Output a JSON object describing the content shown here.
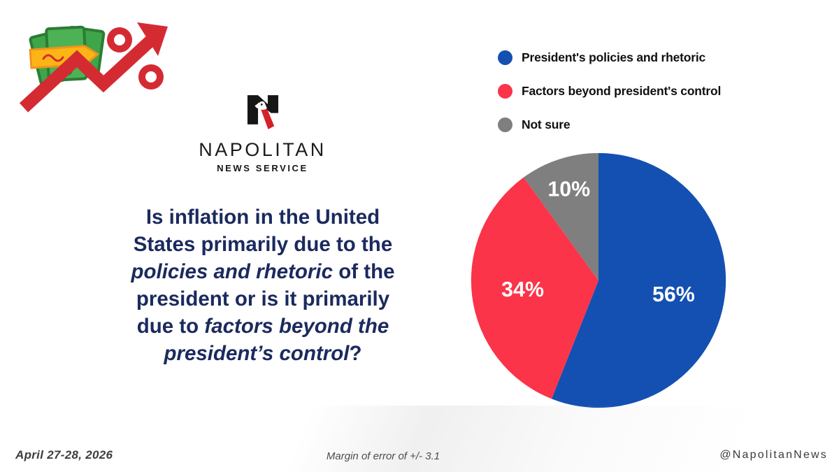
{
  "icons": {
    "money_trend": "money-trend-up-percent-icon",
    "logo_mark": "napolitan-n-eagle-logo-icon",
    "legend_dot": "legend-color-dot-icon"
  },
  "logo": {
    "name": "NAPOLITAN",
    "tagline": "NEWS SERVICE"
  },
  "question": {
    "color": "#1b2a5e",
    "plain_text": "Is inflation in the United States primarily due to the policies and rhetoric of the president or is it primarily due to factors beyond the president’s control?",
    "lines": [
      [
        {
          "text": "Is inflation in the United",
          "italic": false
        }
      ],
      [
        {
          "text": "States primarily due to the",
          "italic": false
        }
      ],
      [
        {
          "text": "policies and rhetoric",
          "italic": true
        },
        {
          "text": " of the",
          "italic": false
        }
      ],
      [
        {
          "text": "president or is it primarily",
          "italic": false
        }
      ],
      [
        {
          "text": "due to ",
          "italic": false
        },
        {
          "text": "factors beyond the",
          "italic": true
        }
      ],
      [
        {
          "text": "president’s control",
          "italic": true
        },
        {
          "text": "?",
          "italic": false
        }
      ]
    ]
  },
  "chart_data": {
    "type": "pie",
    "title": "",
    "labels": [
      "President's policies and rhetoric",
      "Factors beyond president's control",
      "Not sure"
    ],
    "values": [
      56,
      34,
      10
    ],
    "data_labels": [
      "56%",
      "34%",
      "10%"
    ],
    "colors": [
      "#1450b2",
      "#fb3449",
      "#7f7f7f"
    ],
    "start_angle_deg": 0,
    "direction": "clockwise",
    "legend_position": "top-right",
    "label_text_color": "#ffffff"
  },
  "footer": {
    "date": "April 27-28, 2026",
    "margin_note": "Margin of error of +/- 3.1",
    "handle": "@NapolitanNews"
  }
}
